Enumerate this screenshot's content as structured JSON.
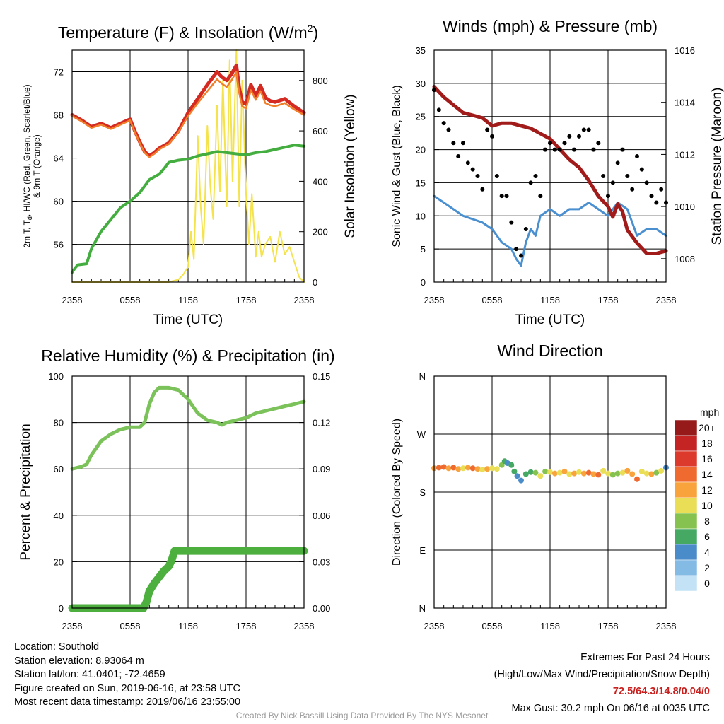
{
  "panels": {
    "temp": {
      "title": "Temperature (F) & Insolation (W/m",
      "title_sup": "2",
      "title_end": ")",
      "ylabel_line1": "2m T, T",
      "ylabel_sub": "d",
      "ylabel_line1_end": ", HI/WC (Red, Green, Scarlet/Blue)",
      "ylabel_line2": "& 9m T (Orange)",
      "y2label": "Solar Insolation (Yellow)",
      "xlabel": "Time (UTC)"
    },
    "wind": {
      "title": "Winds (mph) & Pressure (mb)",
      "ylabel": "Sonic Wind & Gust (Blue, Black)",
      "y2label": "Station Pressure (Maroon)",
      "xlabel": "Time (UTC)"
    },
    "rh": {
      "title": "Relative Humidity (%) & Precipitation (in)",
      "ylabel": "Percent & Precipitation"
    },
    "dir": {
      "title": "Wind Direction",
      "ylabel": "Direction (Colored By Speed)",
      "legend_title": "mph"
    }
  },
  "x_ticks": [
    "2358",
    "0558",
    "1158",
    "1758",
    "2358"
  ],
  "chart_data": [
    {
      "type": "line",
      "title": "Temperature (F) & Insolation (W/m2)",
      "xlabel": "Time (UTC)",
      "x_range_hours": [
        0,
        24
      ],
      "ylim": [
        52.5,
        74
      ],
      "y_ticks": [
        "56",
        "60",
        "64",
        "68",
        "72"
      ],
      "y2lim": [
        0,
        920
      ],
      "y2_ticks": [
        "0",
        "200",
        "400",
        "600",
        "800"
      ],
      "series": [
        {
          "color": "#d42a22",
          "axis": "left",
          "x": [
            0,
            1,
            2,
            3,
            4,
            5,
            6,
            6.5,
            7,
            7.5,
            8,
            8.5,
            9,
            10,
            11,
            12,
            13,
            14,
            15,
            15.5,
            16,
            16.5,
            17,
            17.3,
            17.6,
            18,
            18.5,
            19,
            19.5,
            20,
            20.5,
            21,
            22,
            23,
            24
          ],
          "y": [
            68,
            67.5,
            66.9,
            67.2,
            66.8,
            67.2,
            67.6,
            66.5,
            65.5,
            64.6,
            64.2,
            64.5,
            64.9,
            65.4,
            66.5,
            68.2,
            69.5,
            70.8,
            72.0,
            71.5,
            71.2,
            71.8,
            72.6,
            70.5,
            69.2,
            69.0,
            70.8,
            69.8,
            70.7,
            69.6,
            69.3,
            69.2,
            69.5,
            68.8,
            68.2
          ]
        },
        {
          "color": "#f07f2a",
          "axis": "left",
          "x": [
            0,
            1,
            2,
            3,
            4,
            5,
            6,
            6.5,
            7,
            7.5,
            8,
            8.5,
            9,
            10,
            11,
            12,
            13,
            14,
            15,
            15.5,
            16,
            16.5,
            17,
            17.3,
            17.6,
            18,
            18.5,
            19,
            19.5,
            20,
            20.5,
            21,
            22,
            23,
            24
          ],
          "y": [
            67.9,
            67.4,
            66.8,
            67.1,
            66.7,
            67.1,
            67.5,
            66.4,
            65.4,
            64.5,
            64.1,
            64.4,
            64.8,
            65.3,
            66.4,
            67.9,
            69.1,
            70.2,
            71.3,
            70.9,
            70.6,
            71.2,
            72.0,
            70.0,
            68.8,
            68.6,
            70.3,
            69.4,
            70.2,
            69.1,
            68.9,
            68.8,
            69.1,
            68.5,
            68.0
          ]
        },
        {
          "color": "#44ad3f",
          "axis": "left",
          "x": [
            0,
            0.3,
            0.6,
            1.5,
            2,
            3,
            4,
            5,
            6,
            7,
            8,
            9,
            9.5,
            10,
            11,
            12,
            13,
            14,
            15,
            16,
            17,
            18,
            19,
            20,
            21,
            22,
            23,
            24
          ],
          "y": [
            53.4,
            53.8,
            54.1,
            54.2,
            55.6,
            57.2,
            58.3,
            59.4,
            60.0,
            60.8,
            62.0,
            62.5,
            63.0,
            63.6,
            63.8,
            63.9,
            64.2,
            64.4,
            64.6,
            64.5,
            64.4,
            64.3,
            64.5,
            64.6,
            64.8,
            65.0,
            65.2,
            65.1
          ]
        },
        {
          "color": "#f5e34e",
          "axis": "right",
          "x": [
            0,
            6,
            10,
            11,
            11.5,
            12,
            12.3,
            12.6,
            13,
            13.3,
            13.6,
            14,
            14.3,
            14.6,
            15,
            15.3,
            15.6,
            16,
            16.3,
            16.6,
            17,
            17.3,
            17.6,
            18,
            18.3,
            18.6,
            19,
            19.3,
            19.6,
            20,
            20.5,
            21,
            21.5,
            22,
            22.5,
            23,
            23.5,
            24
          ],
          "y": [
            0,
            0,
            0,
            10,
            30,
            60,
            200,
            90,
            580,
            300,
            150,
            620,
            380,
            250,
            700,
            360,
            800,
            300,
            880,
            400,
            920,
            300,
            800,
            350,
            150,
            350,
            100,
            200,
            100,
            150,
            180,
            80,
            200,
            110,
            140,
            80,
            20,
            0
          ]
        }
      ]
    },
    {
      "type": "line",
      "title": "Winds (mph) & Pressure (mb)",
      "xlabel": "Time (UTC)",
      "x_range_hours": [
        0,
        24
      ],
      "ylim": [
        0,
        35
      ],
      "y_ticks": [
        "0",
        "5",
        "10",
        "15",
        "20",
        "25",
        "30",
        "35"
      ],
      "y2lim": [
        1007.1,
        1016
      ],
      "y2_ticks": [
        "1008",
        "1010",
        "1012",
        "1014",
        "1016"
      ],
      "series": [
        {
          "name_hint": "pressure",
          "color": "#a11b1b",
          "axis": "right",
          "x": [
            0,
            1,
            2,
            3,
            4,
            5,
            6,
            7,
            8,
            9,
            10,
            11,
            12,
            13,
            14,
            15,
            16,
            17,
            18,
            18.5,
            19,
            19.5,
            20,
            21,
            22,
            23,
            24
          ],
          "y": [
            1014.6,
            1014.2,
            1013.9,
            1013.6,
            1013.5,
            1013.4,
            1013.1,
            1013.2,
            1013.2,
            1013.1,
            1013.0,
            1012.8,
            1012.6,
            1012.2,
            1011.8,
            1011.5,
            1011.0,
            1010.4,
            1010.0,
            1009.6,
            1010.1,
            1009.8,
            1009.1,
            1008.6,
            1008.2,
            1008.2,
            1008.3
          ]
        },
        {
          "name_hint": "wind",
          "color": "#4a90d0",
          "axis": "left",
          "x": [
            0,
            1,
            2,
            3,
            4,
            5,
            6,
            7,
            8,
            8.5,
            9,
            9.5,
            10,
            10.5,
            11,
            12,
            13,
            14,
            15,
            16,
            17,
            18,
            19,
            20,
            21,
            22,
            23,
            24
          ],
          "y": [
            13,
            12,
            11,
            10,
            9.5,
            9,
            8,
            6,
            5,
            3.5,
            2.5,
            6,
            8,
            7,
            10,
            11,
            10,
            11,
            11,
            12,
            11,
            10,
            12,
            11,
            7,
            8,
            8,
            7
          ]
        },
        {
          "name_hint": "gust",
          "color": "#000000",
          "axis": "left",
          "mode": "dots",
          "x": [
            0,
            0.5,
            1,
            1.5,
            2,
            2.5,
            3,
            3.5,
            4,
            4.5,
            5,
            5.5,
            6,
            6.5,
            7,
            7.5,
            8,
            8.5,
            9,
            9.5,
            10,
            10.5,
            11,
            11.5,
            12,
            12.5,
            13,
            13.5,
            14,
            14.5,
            15,
            15.5,
            16,
            16.5,
            17,
            17.5,
            18,
            18.5,
            19,
            19.5,
            20,
            20.5,
            21,
            21.5,
            22,
            22.5,
            23,
            23.5,
            24
          ],
          "y": [
            29,
            26,
            24,
            23,
            21,
            19,
            21,
            18,
            17,
            16,
            14,
            23,
            22,
            16,
            13,
            13,
            9,
            5,
            4,
            8,
            15,
            16,
            13,
            20,
            21,
            20,
            20,
            21,
            22,
            20,
            22,
            23,
            23,
            20,
            21,
            16,
            13,
            15,
            18,
            20,
            16,
            14,
            19,
            17,
            15,
            13,
            12,
            14,
            12
          ]
        }
      ]
    },
    {
      "type": "line",
      "title": "Relative Humidity (%) & Precipitation (in)",
      "x_range_hours": [
        0,
        24
      ],
      "ylim": [
        0,
        100
      ],
      "y_ticks": [
        "0",
        "20",
        "40",
        "60",
        "80",
        "100"
      ],
      "y2lim": [
        0,
        0.15
      ],
      "y2_ticks": [
        "0.00",
        "0.03",
        "0.06",
        "0.09",
        "0.12",
        "0.15"
      ],
      "series": [
        {
          "name_hint": "rh",
          "color": "#7cc25a",
          "axis": "left",
          "x": [
            0,
            1,
            1.5,
            2,
            3,
            4,
            5,
            6,
            7,
            7.5,
            8,
            8.5,
            9,
            10,
            11,
            12,
            13,
            14,
            15,
            15.5,
            16,
            17,
            18,
            19,
            20,
            21,
            22,
            23,
            24
          ],
          "y": [
            60,
            61,
            62,
            66,
            72,
            75,
            77,
            78,
            78,
            80,
            88,
            93,
            95,
            95,
            94,
            90,
            84,
            81,
            80,
            79,
            80,
            81,
            82,
            84,
            85,
            86,
            87,
            88,
            89
          ]
        },
        {
          "name_hint": "precip",
          "color": "#4caf3e",
          "axis": "right",
          "x": [
            0,
            1,
            2,
            3,
            4,
            5,
            6,
            7,
            7.4,
            7.7,
            8,
            8.5,
            9,
            9.5,
            10,
            10.3,
            10.6,
            11,
            12,
            13,
            14,
            15,
            16,
            17,
            18,
            19,
            20,
            21,
            22,
            23,
            24
          ],
          "y": [
            0,
            0,
            0,
            0,
            0,
            0,
            0,
            0,
            0,
            0.004,
            0.011,
            0.016,
            0.02,
            0.024,
            0.027,
            0.031,
            0.037,
            0.037,
            0.037,
            0.037,
            0.037,
            0.037,
            0.037,
            0.037,
            0.037,
            0.037,
            0.037,
            0.037,
            0.037,
            0.037,
            0.037
          ]
        }
      ]
    },
    {
      "type": "scatter",
      "title": "Wind Direction",
      "x_range_hours": [
        0,
        24
      ],
      "y_ticks": [
        "N",
        "E",
        "S",
        "W",
        "N"
      ],
      "ylim_degrees": [
        0,
        360
      ],
      "series": [
        {
          "name_hint": "direction",
          "x": [
            0,
            0.5,
            1,
            1.5,
            2,
            2.5,
            3,
            3.5,
            4,
            4.5,
            5,
            5.5,
            6,
            6.5,
            7,
            7.3,
            7.6,
            8,
            8.3,
            8.6,
            9,
            9.5,
            10,
            10.5,
            11,
            11.5,
            12,
            12.5,
            13,
            13.5,
            14,
            14.5,
            15,
            15.5,
            16,
            16.5,
            17,
            17.5,
            18,
            18.5,
            19,
            19.5,
            20,
            20.5,
            21,
            21.5,
            22,
            22.5,
            23,
            23.5,
            24
          ],
          "y": [
            217,
            218,
            219,
            217,
            218,
            216,
            217,
            218,
            217,
            216,
            215,
            216,
            217,
            216,
            222,
            228,
            225,
            222,
            212,
            205,
            198,
            208,
            211,
            210,
            205,
            212,
            211,
            209,
            210,
            212,
            208,
            209,
            211,
            209,
            210,
            208,
            207,
            213,
            209,
            207,
            209,
            210,
            213,
            208,
            200,
            212,
            209,
            208,
            210,
            213,
            218
          ],
          "speed": [
            12,
            13,
            14,
            12,
            13,
            11,
            10,
            12,
            13,
            11,
            10,
            11,
            9,
            10,
            8,
            5,
            4,
            6,
            5,
            4,
            4,
            5,
            6,
            8,
            9,
            7,
            10,
            12,
            9,
            11,
            10,
            12,
            10,
            11,
            13,
            12,
            14,
            10,
            9,
            8,
            7,
            10,
            11,
            12,
            13,
            9,
            10,
            11,
            8,
            9,
            4
          ]
        }
      ],
      "colorbar": {
        "labels": [
          "20+",
          "18",
          "16",
          "14",
          "12",
          "10",
          "8",
          "6",
          "4",
          "2",
          "0"
        ],
        "colors": [
          "#961a1a",
          "#c42424",
          "#dc3a2c",
          "#ef6a2f",
          "#f8a33c",
          "#e9de55",
          "#86c24f",
          "#45a964",
          "#4a8cc9",
          "#84bbe5",
          "#c4e2f6"
        ]
      }
    }
  ],
  "info": {
    "location": "Location: Southold",
    "elevation": "Station elevation: 8.93064 m",
    "latlon": "Station lat/lon: 41.0401; -72.4659",
    "created": "Figure created on Sun, 2019-06-16, at 23:58 UTC",
    "recent": "Most recent data timestamp: 2019/06/16 23:55:00"
  },
  "extremes": {
    "title": "Extremes For Past 24 Hours",
    "legend": "(High/Low/Max Wind/Precipitation/Snow Depth)",
    "values": "72.5/64.3/14.8/0.04/0",
    "gust": "Max Gust: 30.2 mph On 06/16 at 0035 UTC"
  },
  "credit": "Created By Nick Bassill Using Data Provided By The NYS Mesonet"
}
